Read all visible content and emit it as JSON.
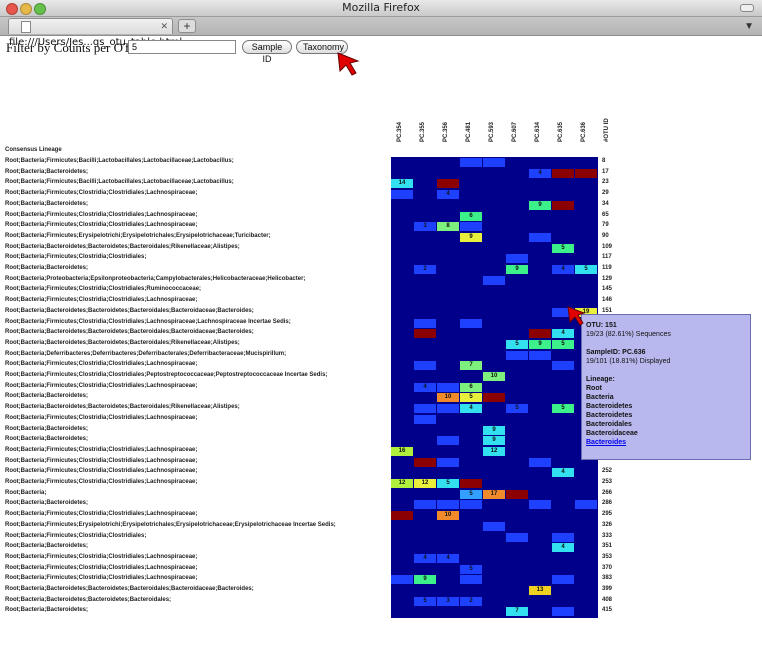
{
  "window": {
    "title": "Mozilla Firefox"
  },
  "tabs": [
    {
      "label": "file:///Users/Jes...qs_otu_table.html"
    }
  ],
  "newtab_label": "+",
  "filter": {
    "label": "Filter by Counts per OTU:",
    "value": "5"
  },
  "buttons": {
    "sample_id": "Sample ID",
    "taxonomy": "Taxonomy"
  },
  "table": {
    "lineage_header": "Consensus Lineage",
    "otu_header": "#OTU ID",
    "columns": [
      "PC.354",
      "PC.355",
      "PC.356",
      "PC.481",
      "PC.593",
      "PC.607",
      "PC.634",
      "PC.635",
      "PC.636"
    ],
    "rows": [
      {
        "lineage": "Root;Bacteria;Firmicutes;Bacilli;Lactobacillales;Lactobacillaceae;Lactobacillus;",
        "otu": "8",
        "cells": [
          {
            "c": 3,
            "v": "",
            "color": "#1e40ff"
          },
          {
            "c": 4,
            "v": "",
            "color": "#1e40ff"
          }
        ]
      },
      {
        "lineage": "Root;Bacteria;Bacteroidetes;",
        "otu": "17",
        "cells": [
          {
            "c": 6,
            "v": "4",
            "color": "#1e40ff"
          },
          {
            "c": 7,
            "v": "",
            "color": "#8b0000"
          },
          {
            "c": 8,
            "v": "",
            "color": "#8b0000"
          }
        ]
      },
      {
        "lineage": "Root;Bacteria;Firmicutes;Bacilli;Lactobacillales;Lactobacillaceae;Lactobacillus;",
        "otu": "23",
        "cells": [
          {
            "c": 0,
            "v": "14",
            "color": "#33e0f0"
          },
          {
            "c": 2,
            "v": "",
            "color": "#8b0000"
          }
        ]
      },
      {
        "lineage": "Root;Bacteria;Firmicutes;Clostridia;Clostridiales;Lachnospiraceae;",
        "otu": "29",
        "cells": [
          {
            "c": 0,
            "v": "",
            "color": "#1e40ff"
          },
          {
            "c": 2,
            "v": "4",
            "color": "#1e40ff"
          }
        ]
      },
      {
        "lineage": "Root;Bacteria;Bacteroidetes;",
        "otu": "34",
        "cells": [
          {
            "c": 6,
            "v": "9",
            "color": "#3cf08a"
          },
          {
            "c": 7,
            "v": "",
            "color": "#8b0000"
          }
        ]
      },
      {
        "lineage": "Root;Bacteria;Firmicutes;Clostridia;Clostridiales;Lachnospiraceae;",
        "otu": "65",
        "cells": [
          {
            "c": 3,
            "v": "6",
            "color": "#3cf08a"
          }
        ]
      },
      {
        "lineage": "Root;Bacteria;Firmicutes;Clostridia;Clostridiales;Lachnospiraceae;",
        "otu": "79",
        "cells": [
          {
            "c": 1,
            "v": "3",
            "color": "#1e40ff"
          },
          {
            "c": 2,
            "v": "8",
            "color": "#7ef07e"
          },
          {
            "c": 3,
            "v": "",
            "color": "#1e40ff"
          }
        ]
      },
      {
        "lineage": "Root;Bacteria;Firmicutes;Erysipelotrichi;Erysipelotrichales;Erysipelotrichaceae;Turicibacter;",
        "otu": "90",
        "cells": [
          {
            "c": 3,
            "v": "9",
            "color": "#e8f03c"
          },
          {
            "c": 6,
            "v": "",
            "color": "#1e40ff"
          }
        ]
      },
      {
        "lineage": "Root;Bacteria;Bacteroidetes;Bacteroidetes;Bacteroidales;Rikenellaceae;Alistipes;",
        "otu": "109",
        "cells": [
          {
            "c": 7,
            "v": "5",
            "color": "#3cf08a"
          }
        ]
      },
      {
        "lineage": "Root;Bacteria;Firmicutes;Clostridia;Clostridiales;",
        "otu": "117",
        "cells": [
          {
            "c": 5,
            "v": "",
            "color": "#1e40ff"
          }
        ]
      },
      {
        "lineage": "Root;Bacteria;Bacteroidetes;",
        "otu": "119",
        "cells": [
          {
            "c": 1,
            "v": "2",
            "color": "#1e40ff"
          },
          {
            "c": 5,
            "v": "9",
            "color": "#3cf08a"
          },
          {
            "c": 7,
            "v": "4",
            "color": "#1e40ff"
          },
          {
            "c": 8,
            "v": "5",
            "color": "#33e0f0"
          }
        ]
      },
      {
        "lineage": "Root;Bacteria;Proteobacteria;Epsilonproteobacteria;Campylobacterales;Helicobacteraceae;Helicobacter;",
        "otu": "129",
        "cells": [
          {
            "c": 4,
            "v": "",
            "color": "#1e40ff"
          }
        ]
      },
      {
        "lineage": "Root;Bacteria;Firmicutes;Clostridia;Clostridiales;Ruminococcaceae;",
        "otu": "145",
        "cells": []
      },
      {
        "lineage": "Root;Bacteria;Firmicutes;Clostridia;Clostridiales;Lachnospiraceae;",
        "otu": "146",
        "cells": []
      },
      {
        "lineage": "Root;Bacteria;Bacteroidetes;Bacteroidetes;Bacteroidales;Bacteroidaceae;Bacteroides;",
        "otu": "151",
        "cells": [
          {
            "c": 7,
            "v": "",
            "color": "#1e40ff"
          },
          {
            "c": 8,
            "v": "19",
            "color": "#e8f03c"
          }
        ]
      },
      {
        "lineage": "Root;Bacteria;Firmicutes;Clostridia;Clostridiales;Lachnospiraceae;Lachnospiraceae Incertae Sedis;",
        "otu": "",
        "cells": [
          {
            "c": 1,
            "v": "",
            "color": "#1e40ff"
          },
          {
            "c": 3,
            "v": "",
            "color": "#1e40ff"
          }
        ]
      },
      {
        "lineage": "Root;Bacteria;Bacteroidetes;Bacteroidetes;Bacteroidales;Bacteroidaceae;Bacteroides;",
        "otu": "",
        "cells": [
          {
            "c": 1,
            "v": "",
            "color": "#8b0000"
          },
          {
            "c": 6,
            "v": "",
            "color": "#8b0000"
          },
          {
            "c": 7,
            "v": "4",
            "color": "#33e0f0"
          }
        ]
      },
      {
        "lineage": "Root;Bacteria;Bacteroidetes;Bacteroidetes;Bacteroidales;Rikenellaceae;Alistipes;",
        "otu": "",
        "cells": [
          {
            "c": 5,
            "v": "5",
            "color": "#33e0f0"
          },
          {
            "c": 6,
            "v": "9",
            "color": "#3cf08a"
          },
          {
            "c": 7,
            "v": "5",
            "color": "#3cf08a"
          }
        ]
      },
      {
        "lineage": "Root;Bacteria;Deferribacteres;Deferribacteres;Deferribacterales;Deferribacteraceae;Mucispirillum;",
        "otu": "",
        "cells": [
          {
            "c": 5,
            "v": "",
            "color": "#1e40ff"
          },
          {
            "c": 6,
            "v": "",
            "color": "#1e40ff"
          }
        ]
      },
      {
        "lineage": "Root;Bacteria;Firmicutes;Clostridia;Clostridiales;Lachnospiraceae;",
        "otu": "",
        "cells": [
          {
            "c": 1,
            "v": "",
            "color": "#1e40ff"
          },
          {
            "c": 3,
            "v": "7",
            "color": "#7ef07e"
          },
          {
            "c": 7,
            "v": "",
            "color": "#1e40ff"
          }
        ]
      },
      {
        "lineage": "Root;Bacteria;Firmicutes;Clostridia;Clostridiales;Peptostreptococcaceae;Peptostreptococcaceae Incertae Sedis;",
        "otu": "",
        "cells": [
          {
            "c": 4,
            "v": "10",
            "color": "#7ef07e"
          }
        ]
      },
      {
        "lineage": "Root;Bacteria;Firmicutes;Clostridia;Clostridiales;Lachnospiraceae;",
        "otu": "",
        "cells": [
          {
            "c": 1,
            "v": "4",
            "color": "#1e40ff"
          },
          {
            "c": 2,
            "v": "",
            "color": "#1e40ff"
          },
          {
            "c": 3,
            "v": "6",
            "color": "#7ef07e"
          }
        ]
      },
      {
        "lineage": "Root;Bacteria;Bacteroidetes;",
        "otu": "",
        "cells": [
          {
            "c": 2,
            "v": "10",
            "color": "#f08a2a"
          },
          {
            "c": 3,
            "v": "5",
            "color": "#e8f03c"
          },
          {
            "c": 4,
            "v": "",
            "color": "#8b0000"
          }
        ]
      },
      {
        "lineage": "Root;Bacteria;Bacteroidetes;Bacteroidetes;Bacteroidales;Rikenellaceae;Alistipes;",
        "otu": "",
        "cells": [
          {
            "c": 1,
            "v": "",
            "color": "#1e40ff"
          },
          {
            "c": 2,
            "v": "",
            "color": "#1e40ff"
          },
          {
            "c": 3,
            "v": "4",
            "color": "#33e0f0"
          },
          {
            "c": 5,
            "v": "5",
            "color": "#1e40ff"
          },
          {
            "c": 7,
            "v": "5",
            "color": "#3cf08a"
          }
        ]
      },
      {
        "lineage": "Root;Bacteria;Firmicutes;Clostridia;Clostridiales;Lachnospiraceae;",
        "otu": "",
        "cells": [
          {
            "c": 1,
            "v": "",
            "color": "#1e40ff"
          }
        ]
      },
      {
        "lineage": "Root;Bacteria;Bacteroidetes;",
        "otu": "",
        "cells": [
          {
            "c": 4,
            "v": "9",
            "color": "#33e0f0"
          }
        ]
      },
      {
        "lineage": "Root;Bacteria;Bacteroidetes;",
        "otu": "",
        "cells": [
          {
            "c": 2,
            "v": "",
            "color": "#1e40ff"
          },
          {
            "c": 4,
            "v": "9",
            "color": "#33e0f0"
          }
        ]
      },
      {
        "lineage": "Root;Bacteria;Firmicutes;Clostridia;Clostridiales;Lachnospiraceae;",
        "otu": "",
        "cells": [
          {
            "c": 0,
            "v": "16",
            "color": "#b0f03c"
          },
          {
            "c": 4,
            "v": "12",
            "color": "#33e0f0"
          }
        ]
      },
      {
        "lineage": "Root;Bacteria;Firmicutes;Clostridia;Clostridiales;Lachnospiraceae;",
        "otu": "",
        "cells": [
          {
            "c": 1,
            "v": "",
            "color": "#8b0000"
          },
          {
            "c": 2,
            "v": "",
            "color": "#1e40ff"
          },
          {
            "c": 6,
            "v": "",
            "color": "#1e40ff"
          }
        ]
      },
      {
        "lineage": "Root;Bacteria;Firmicutes;Clostridia;Clostridiales;Lachnospiraceae;",
        "otu": "252",
        "cells": [
          {
            "c": 7,
            "v": "4",
            "color": "#33e0f0"
          }
        ]
      },
      {
        "lineage": "Root;Bacteria;Firmicutes;Clostridia;Clostridiales;Lachnospiraceae;",
        "otu": "253",
        "cells": [
          {
            "c": 0,
            "v": "12",
            "color": "#b0f03c"
          },
          {
            "c": 1,
            "v": "12",
            "color": "#e8f03c"
          },
          {
            "c": 2,
            "v": "5",
            "color": "#33e0f0"
          },
          {
            "c": 3,
            "v": "",
            "color": "#8b0000"
          }
        ]
      },
      {
        "lineage": "Root;Bacteria;",
        "otu": "266",
        "cells": [
          {
            "c": 3,
            "v": "5",
            "color": "#33a0ff"
          },
          {
            "c": 4,
            "v": "17",
            "color": "#f08a2a"
          },
          {
            "c": 5,
            "v": "",
            "color": "#8b0000"
          }
        ]
      },
      {
        "lineage": "Root;Bacteria;Bacteroidetes;",
        "otu": "286",
        "cells": [
          {
            "c": 1,
            "v": "",
            "color": "#1e40ff"
          },
          {
            "c": 2,
            "v": "",
            "color": "#1e40ff"
          },
          {
            "c": 3,
            "v": "",
            "color": "#1e40ff"
          },
          {
            "c": 6,
            "v": "",
            "color": "#1e40ff"
          },
          {
            "c": 8,
            "v": "",
            "color": "#1e40ff"
          }
        ]
      },
      {
        "lineage": "Root;Bacteria;Firmicutes;Clostridia;Clostridiales;Lachnospiraceae;",
        "otu": "295",
        "cells": [
          {
            "c": 0,
            "v": "",
            "color": "#8b0000"
          },
          {
            "c": 2,
            "v": "10",
            "color": "#f08a2a"
          }
        ]
      },
      {
        "lineage": "Root;Bacteria;Firmicutes;Erysipelotrichi;Erysipelotrichales;Erysipelotrichaceae;Erysipelotrichaceae Incertae Sedis;",
        "otu": "326",
        "cells": [
          {
            "c": 4,
            "v": "",
            "color": "#1e40ff"
          }
        ]
      },
      {
        "lineage": "Root;Bacteria;Firmicutes;Clostridia;Clostridiales;",
        "otu": "333",
        "cells": [
          {
            "c": 5,
            "v": "",
            "color": "#1e40ff"
          },
          {
            "c": 7,
            "v": "",
            "color": "#1e40ff"
          }
        ]
      },
      {
        "lineage": "Root;Bacteria;Bacteroidetes;",
        "otu": "351",
        "cells": [
          {
            "c": 7,
            "v": "4",
            "color": "#33e0f0"
          }
        ]
      },
      {
        "lineage": "Root;Bacteria;Firmicutes;Clostridia;Clostridiales;Lachnospiraceae;",
        "otu": "353",
        "cells": [
          {
            "c": 1,
            "v": "4",
            "color": "#1e40ff"
          },
          {
            "c": 2,
            "v": "4",
            "color": "#1e40ff"
          }
        ]
      },
      {
        "lineage": "Root;Bacteria;Firmicutes;Clostridia;Clostridiales;Lachnospiraceae;",
        "otu": "370",
        "cells": [
          {
            "c": 3,
            "v": "5",
            "color": "#1e40ff"
          }
        ]
      },
      {
        "lineage": "Root;Bacteria;Firmicutes;Clostridia;Clostridiales;Lachnospiraceae;",
        "otu": "383",
        "cells": [
          {
            "c": 0,
            "v": "",
            "color": "#1e40ff"
          },
          {
            "c": 1,
            "v": "9",
            "color": "#3cf08a"
          },
          {
            "c": 3,
            "v": "",
            "color": "#1e40ff"
          },
          {
            "c": 7,
            "v": "",
            "color": "#1e40ff"
          }
        ]
      },
      {
        "lineage": "Root;Bacteria;Bacteroidetes;Bacteroidetes;Bacteroidales;Bacteroidaceae;Bacteroides;",
        "otu": "399",
        "cells": [
          {
            "c": 6,
            "v": "13",
            "color": "#f0d020"
          }
        ]
      },
      {
        "lineage": "Root;Bacteria;Bacteroidetes;Bacteroidetes;Bacteroidales;",
        "otu": "408",
        "cells": [
          {
            "c": 1,
            "v": "5",
            "color": "#1e40ff"
          },
          {
            "c": 2,
            "v": "3",
            "color": "#1e40ff"
          },
          {
            "c": 3,
            "v": "2",
            "color": "#1e40ff"
          }
        ]
      },
      {
        "lineage": "Root;Bacteria;Bacteroidetes;",
        "otu": "415",
        "cells": [
          {
            "c": 5,
            "v": "7",
            "color": "#33e0f0"
          },
          {
            "c": 7,
            "v": "",
            "color": "#1e40ff"
          }
        ]
      }
    ]
  },
  "tooltip": {
    "otu_line": "OTU: 151",
    "seq_line": "19/23 (82.61%) Sequences",
    "sample_line": "SampleID: PC.636",
    "disp_line": "19/101 (18.81%) Displayed",
    "lineage_label": "Lineage:",
    "lineage": [
      "Root",
      "Bacteria",
      "Bacteroidetes",
      "Bacteroidetes",
      "Bacteroidales",
      "Bacteroidaceae"
    ],
    "link": "Bacteroides"
  },
  "colors": {
    "heat_bg": "#00008b",
    "accent_cursor": "#e00000"
  }
}
